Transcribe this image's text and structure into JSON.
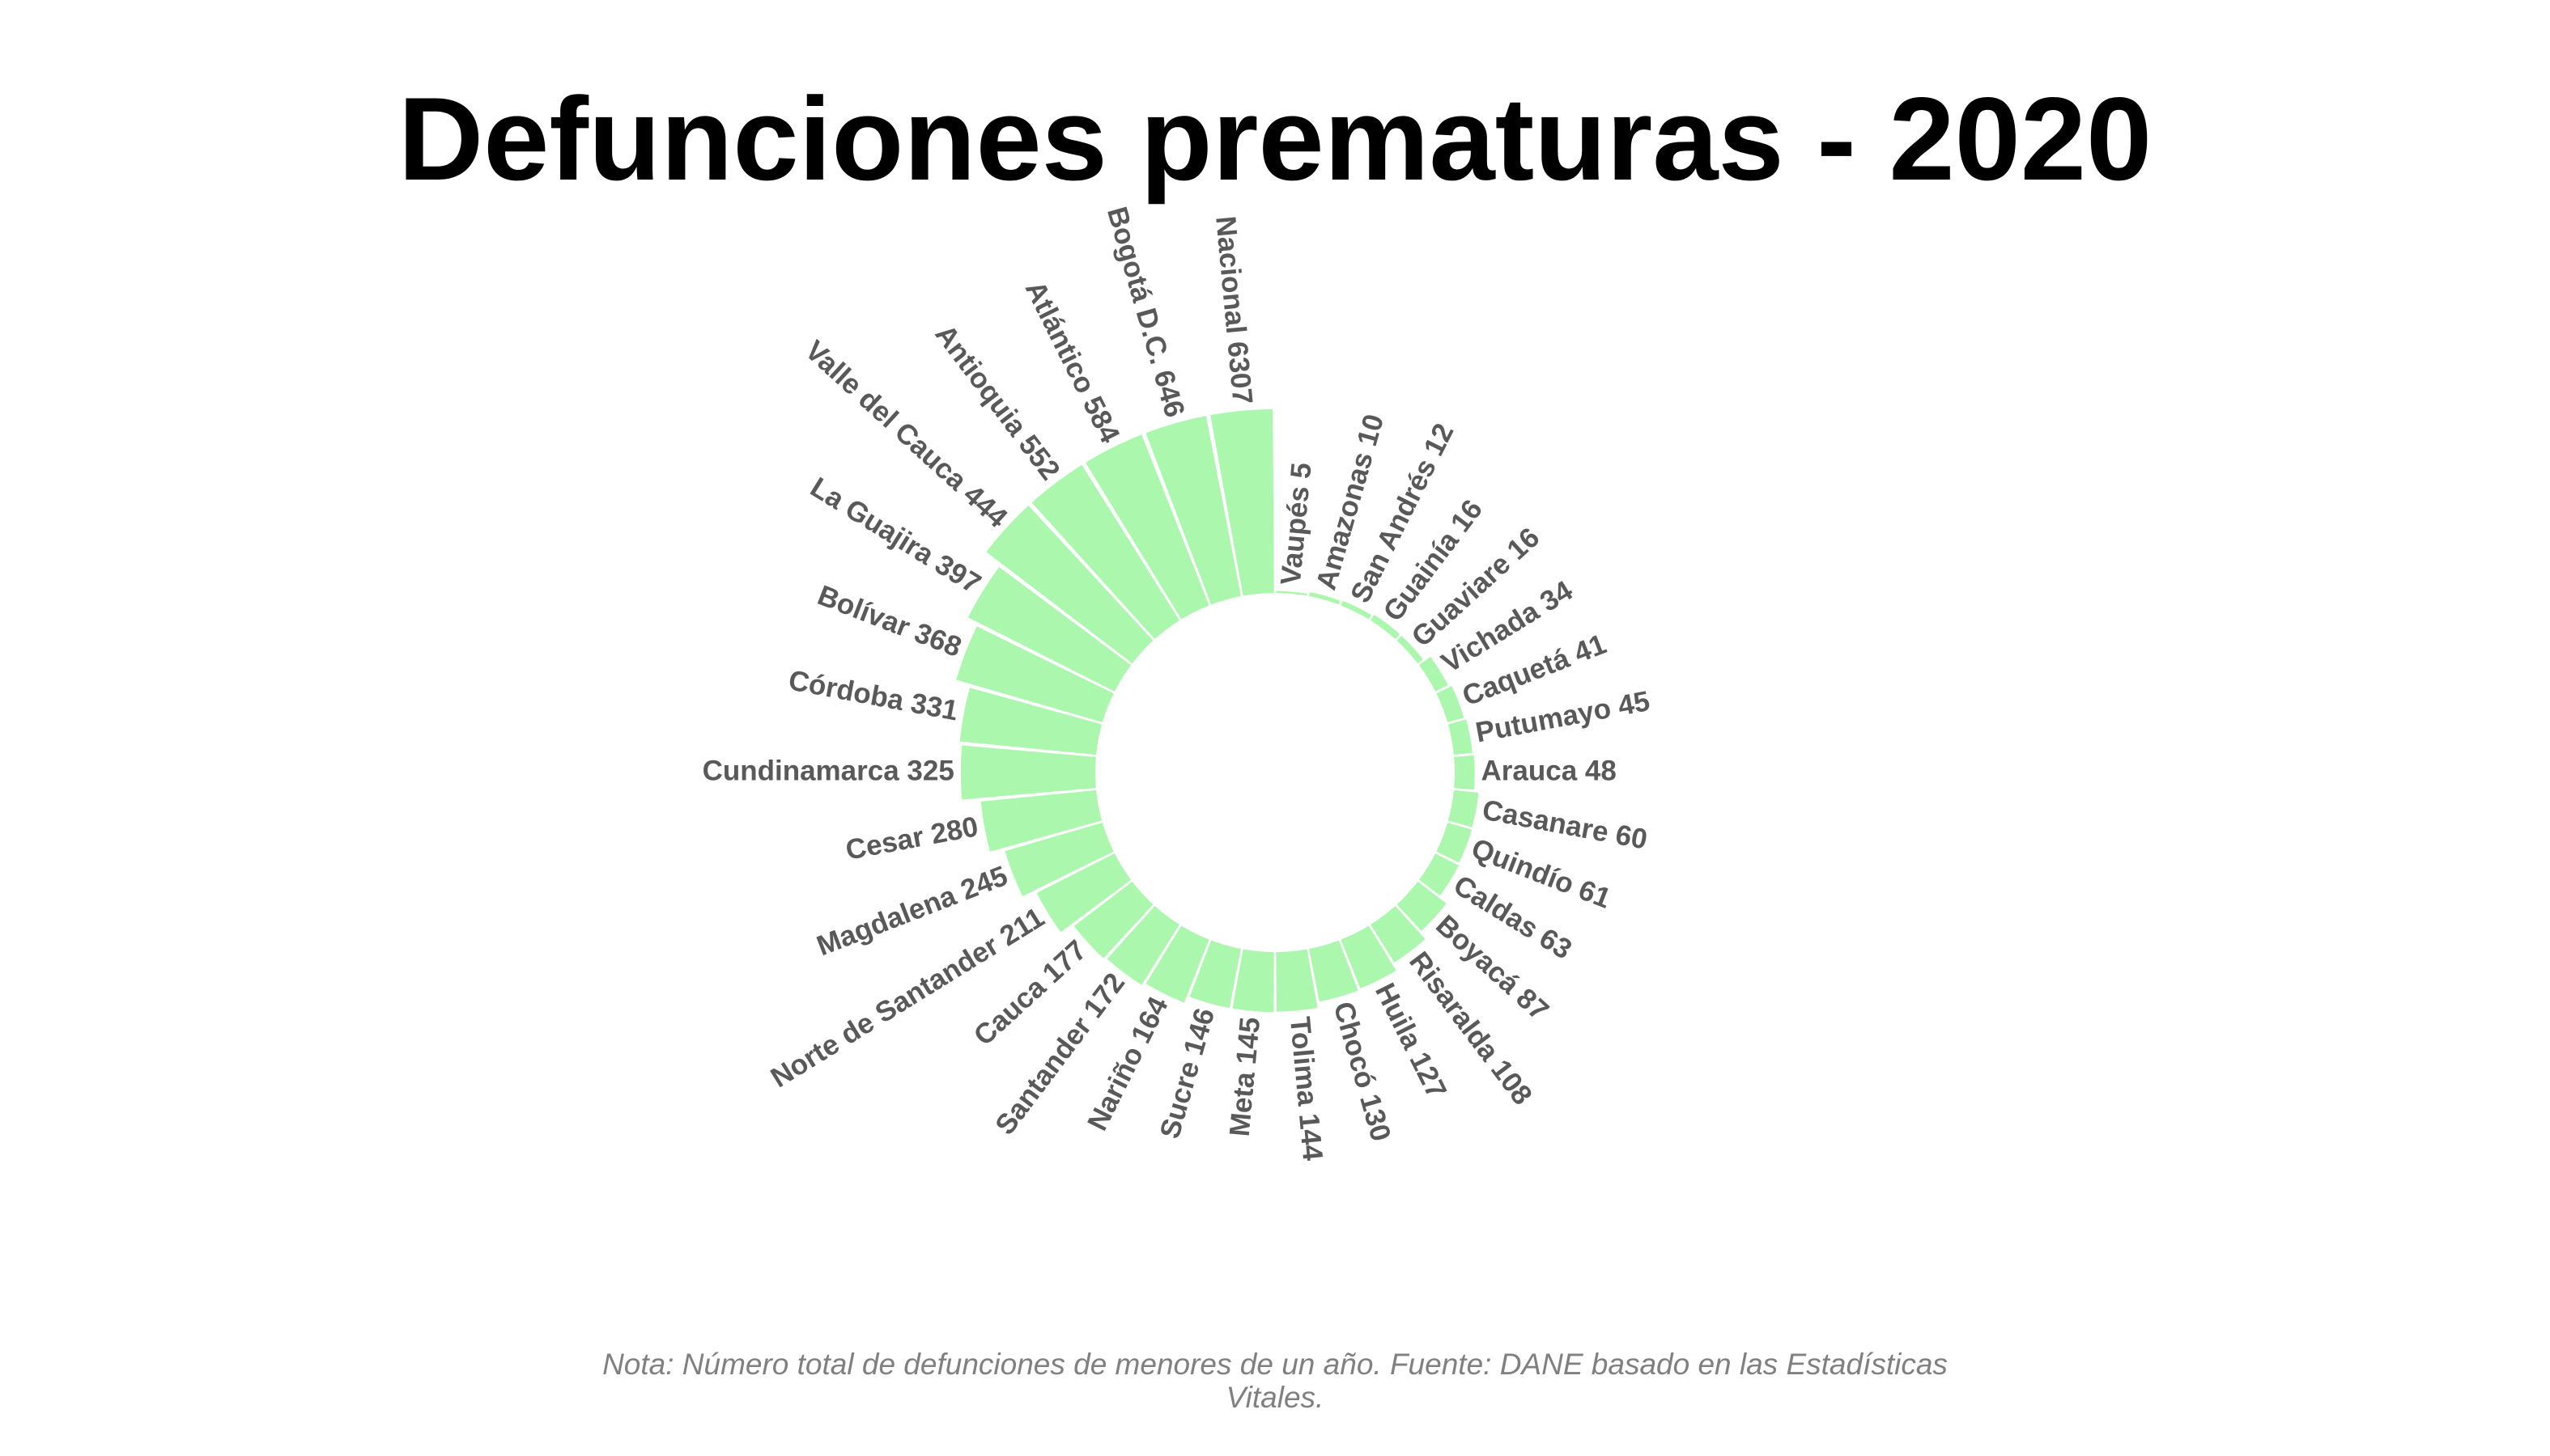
{
  "title": "Defunciones prematuras - 2020",
  "note": "Nota: Número total de defunciones de menores de un año. Fuente: DANE basado en las Estadísticas Vitales.",
  "bar_color": "#aaf7ad",
  "label_color": "#595959",
  "chart_data": {
    "type": "bar",
    "layout": "circular",
    "title": "Defunciones prematuras - 2020",
    "categories": [
      "Vaupés",
      "Amazonas",
      "San Andrés",
      "Guainía",
      "Guaviare",
      "Vichada",
      "Caquetá",
      "Putumayo",
      "Arauca",
      "Casanare",
      "Quindío",
      "Caldas",
      "Boyacá",
      "Risaralda",
      "Huila",
      "Chocó",
      "Tolima",
      "Meta",
      "Sucre",
      "Nariño",
      "Santander",
      "Cauca",
      "Norte de Santander",
      "Magdalena",
      "Cesar",
      "Cundinamarca",
      "Córdoba",
      "Bolívar",
      "La Guajira",
      "Valle del Cauca",
      "Antioquia",
      "Atlántico",
      "Bogotá D.C.",
      "Nacional"
    ],
    "values": [
      5,
      10,
      12,
      16,
      16,
      34,
      41,
      45,
      48,
      60,
      61,
      63,
      87,
      108,
      127,
      130,
      144,
      145,
      146,
      164,
      172,
      177,
      211,
      245,
      280,
      325,
      331,
      368,
      397,
      444,
      552,
      584,
      646,
      6307
    ],
    "labels": [
      "Vaupés 5",
      "Amazonas 10",
      "San Andrés 12",
      "Guainía 16",
      "Guaviare 16",
      "Vichada 34",
      "Caquetá 41",
      "Putumayo 45",
      "Arauca 48",
      "Casanare 60",
      "Quindío 61",
      "Caldas 63",
      "Boyacá 87",
      "Risaralda 108",
      "Huila 127",
      "Chocó 130",
      "Tolima 144",
      "Meta 145",
      "Sucre 146",
      "Nariño 164",
      "Santander 172",
      "Cauca 177",
      "Norte de Santander 211",
      "Magdalena 245",
      "Cesar 280",
      "Cundinamarca 325",
      "Córdoba 331",
      "Bolívar 368",
      "La Guajira 397",
      "Valle del Cauca 444",
      "Antioquia 552",
      "Atlántico 584",
      "Bogotá D.C. 646",
      "Nacional 6307"
    ],
    "label_max": 444
  }
}
